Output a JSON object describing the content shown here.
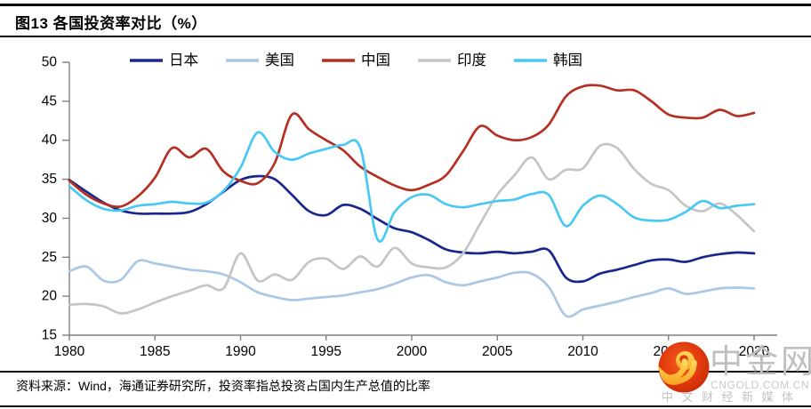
{
  "header": {
    "title": "图13 各国投资率对比（%）"
  },
  "footer": {
    "source": "资料来源：Wind，海通证券研究所，投资率指总投资占国内生产总值的比率"
  },
  "watermark": {
    "brand": "中金网",
    "domain": "CNGOLD.COM.CN",
    "tagline": "中文财经新媒体",
    "logo_red": "#E13A0D",
    "logo_gold": "#FFC833",
    "text_color": "#BFBFBF"
  },
  "chart_data": {
    "type": "line",
    "title": "图13 各国投资率对比（%）",
    "xlabel": "",
    "ylabel": "",
    "grid": false,
    "legend_position": "top",
    "ylim": [
      15,
      50
    ],
    "yticks": [
      50,
      45,
      40,
      35,
      30,
      25,
      20,
      15
    ],
    "xticks": [
      1980,
      1985,
      1990,
      1995,
      2000,
      2005,
      2010,
      2015,
      2020
    ],
    "x": [
      1980,
      1981,
      1982,
      1983,
      1984,
      1985,
      1986,
      1987,
      1988,
      1989,
      1990,
      1991,
      1992,
      1993,
      1994,
      1995,
      1996,
      1997,
      1998,
      1999,
      2000,
      2001,
      2002,
      2003,
      2004,
      2005,
      2006,
      2007,
      2008,
      2009,
      2010,
      2011,
      2012,
      2013,
      2014,
      2015,
      2016,
      2017,
      2018,
      2019,
      2020
    ],
    "series": [
      {
        "key": "japan",
        "name": "日本",
        "color": "#19278C",
        "values": [
          34.9,
          33.4,
          32.0,
          31.0,
          30.6,
          30.6,
          30.6,
          30.8,
          31.8,
          33.4,
          34.9,
          35.4,
          35.0,
          33.0,
          30.9,
          30.4,
          31.7,
          31.2,
          29.9,
          28.7,
          28.2,
          27.2,
          26.0,
          25.6,
          25.5,
          25.7,
          25.5,
          25.7,
          25.9,
          22.4,
          21.9,
          22.9,
          23.4,
          24.0,
          24.6,
          24.7,
          24.4,
          25.0,
          25.4,
          25.6,
          25.5
        ]
      },
      {
        "key": "usa",
        "name": "美国",
        "color": "#A9C7E6",
        "values": [
          23.2,
          23.8,
          22.0,
          22.1,
          24.5,
          24.2,
          23.8,
          23.4,
          23.2,
          22.8,
          21.8,
          20.5,
          19.9,
          19.5,
          19.7,
          19.9,
          20.1,
          20.5,
          20.9,
          21.6,
          22.4,
          22.7,
          21.8,
          21.4,
          21.9,
          22.4,
          23.0,
          22.9,
          21.2,
          17.5,
          18.3,
          18.8,
          19.3,
          19.9,
          20.4,
          21.0,
          20.3,
          20.6,
          21.0,
          21.1,
          21.0
        ]
      },
      {
        "key": "china",
        "name": "中国",
        "color": "#B33022",
        "values": [
          34.8,
          33.0,
          31.9,
          31.5,
          32.8,
          35.2,
          39.0,
          37.8,
          38.9,
          36.0,
          34.8,
          34.5,
          37.1,
          43.3,
          41.4,
          40.0,
          38.7,
          36.6,
          35.3,
          34.2,
          33.6,
          34.3,
          35.5,
          38.6,
          41.8,
          40.6,
          40.0,
          40.4,
          42.0,
          45.6,
          46.9,
          47.0,
          46.4,
          46.4,
          45.0,
          43.3,
          42.9,
          42.9,
          43.9,
          43.1,
          43.5
        ]
      },
      {
        "key": "india",
        "name": "印度",
        "color": "#C5C5C5",
        "values": [
          18.9,
          19.0,
          18.7,
          17.8,
          18.3,
          19.2,
          20.0,
          20.7,
          21.4,
          21.0,
          25.5,
          22.0,
          22.8,
          22.1,
          24.4,
          24.8,
          23.5,
          25.1,
          23.8,
          26.2,
          24.2,
          23.7,
          23.7,
          25.5,
          29.3,
          33.0,
          35.5,
          37.8,
          35.0,
          36.2,
          36.4,
          39.3,
          39.0,
          36.3,
          34.4,
          33.6,
          31.6,
          30.9,
          31.9,
          30.4,
          28.3
        ]
      },
      {
        "key": "korea",
        "name": "韩国",
        "color": "#4AC8F4",
        "values": [
          34.1,
          32.3,
          31.2,
          31.0,
          31.6,
          31.8,
          32.1,
          31.9,
          32.0,
          33.5,
          36.5,
          41.0,
          38.5,
          37.5,
          38.3,
          38.9,
          39.4,
          39.0,
          27.3,
          30.8,
          32.7,
          33.0,
          31.8,
          31.4,
          31.8,
          32.2,
          32.4,
          33.1,
          33.0,
          29.0,
          31.6,
          32.9,
          31.8,
          30.1,
          29.7,
          29.8,
          30.8,
          32.2,
          31.3,
          31.6,
          31.8
        ]
      }
    ]
  }
}
